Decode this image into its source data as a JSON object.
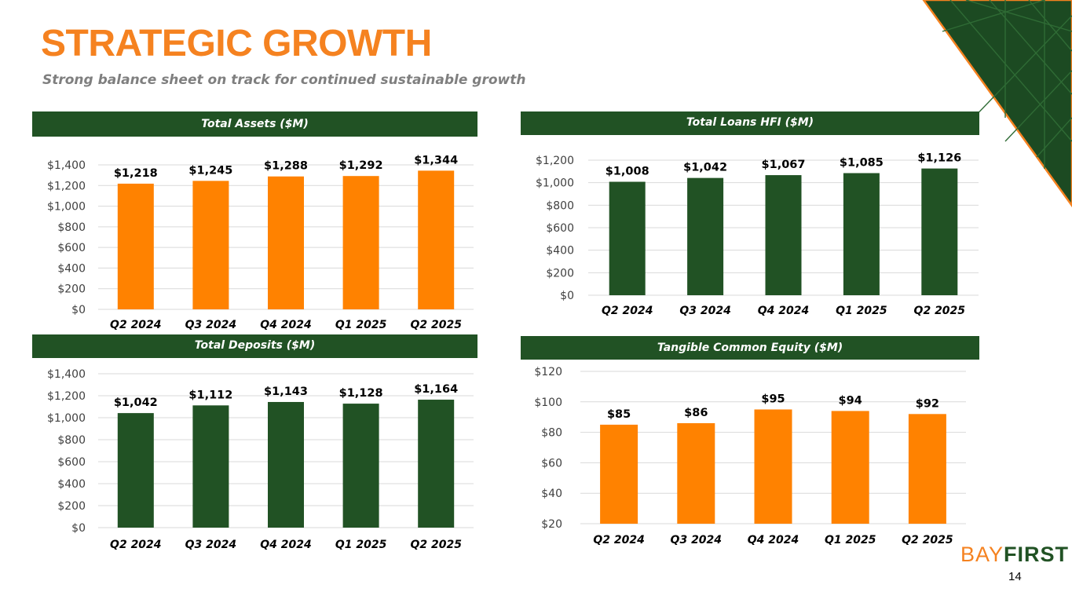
{
  "header": {
    "title": "STRATEGIC GROWTH",
    "subtitle": "Strong balance sheet on track for continued sustainable growth"
  },
  "colors": {
    "orange": "#F58220",
    "green": "#215224"
  },
  "chart_data": [
    {
      "type": "bar",
      "title": "Total Assets  ($M)",
      "categories": [
        "Q2 2024",
        "Q3 2024",
        "Q4 2024",
        "Q1 2025",
        "Q2 2025"
      ],
      "values": [
        1218,
        1245,
        1288,
        1292,
        1344
      ],
      "labels": [
        "$1,218",
        "$1,245",
        "$1,288",
        "$1,292",
        "$1,344"
      ],
      "ylim": [
        0,
        1400
      ],
      "yticks": [
        "$0",
        "$200",
        "$400",
        "$600",
        "$800",
        "$1,000",
        "$1,200",
        "$1,400"
      ],
      "color": "#FF8200"
    },
    {
      "type": "bar",
      "title": "Total Loans HFI ($M)",
      "categories": [
        "Q2 2024",
        "Q3 2024",
        "Q4 2024",
        "Q1 2025",
        "Q2 2025"
      ],
      "values": [
        1008,
        1042,
        1067,
        1085,
        1126
      ],
      "labels": [
        "$1,008",
        "$1,042",
        "$1,067",
        "$1,085",
        "$1,126"
      ],
      "ylim": [
        0,
        1200
      ],
      "yticks": [
        "$0",
        "$200",
        "$400",
        "$600",
        "$800",
        "$1,000",
        "$1,200"
      ],
      "color": "#215224"
    },
    {
      "type": "bar",
      "title": "Total Deposits ($M)",
      "categories": [
        "Q2 2024",
        "Q3 2024",
        "Q4 2024",
        "Q1 2025",
        "Q2 2025"
      ],
      "values": [
        1042,
        1112,
        1143,
        1128,
        1164
      ],
      "labels": [
        "$1,042",
        "$1,112",
        "$1,143",
        "$1,128",
        "$1,164"
      ],
      "ylim": [
        0,
        1400
      ],
      "yticks": [
        "$0",
        "$200",
        "$400",
        "$600",
        "$800",
        "$1,000",
        "$1,200",
        "$1,400"
      ],
      "color": "#215224"
    },
    {
      "type": "bar",
      "title": "Tangible Common Equity ($M)",
      "categories": [
        "Q2 2024",
        "Q3 2024",
        "Q4 2024",
        "Q1 2025",
        "Q2 2025"
      ],
      "values": [
        85,
        86,
        95,
        94,
        92
      ],
      "labels": [
        "$85",
        "$86",
        "$95",
        "$94",
        "$92"
      ],
      "ylim": [
        20,
        120
      ],
      "yticks": [
        "$20",
        "$40",
        "$60",
        "$80",
        "$100",
        "$120"
      ],
      "color": "#FF8200"
    }
  ],
  "logo": {
    "part1": "BAY",
    "part2": "FIRST"
  },
  "page_number": "14"
}
